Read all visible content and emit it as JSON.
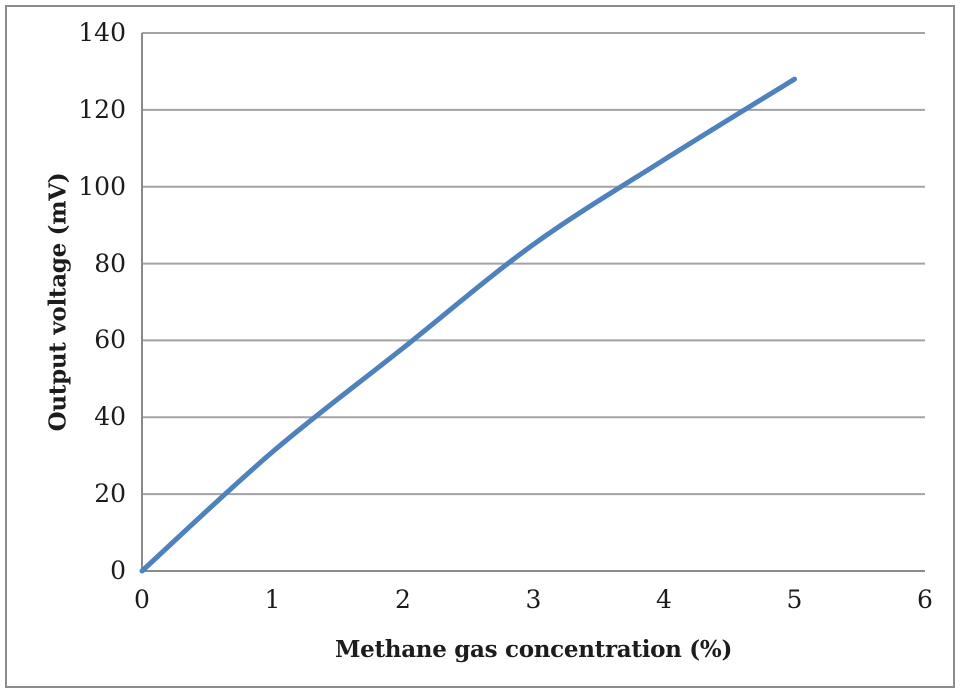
{
  "chart_data": {
    "type": "line",
    "title": "",
    "xlabel": "Methane gas concentration (%)",
    "ylabel": "Output voltage (mV)",
    "x": [
      0,
      1,
      2,
      3,
      4,
      5
    ],
    "series": [
      {
        "name": "Output voltage",
        "values": [
          0,
          31,
          58,
          85,
          107,
          128
        ]
      }
    ],
    "xlim": [
      0,
      6
    ],
    "ylim": [
      0,
      140
    ],
    "xticks": [
      "0",
      "1",
      "2",
      "3",
      "4",
      "5",
      "6"
    ],
    "yticks": [
      "0",
      "20",
      "40",
      "60",
      "80",
      "100",
      "120",
      "140"
    ],
    "grid": "horizontal",
    "legend_position": "none",
    "line_color": "#4F81BD",
    "gridline_color": "#a3a3a3",
    "axis_color": "#8a8a8a",
    "frame_border_color": "#8c8c8c",
    "smooth": true
  }
}
